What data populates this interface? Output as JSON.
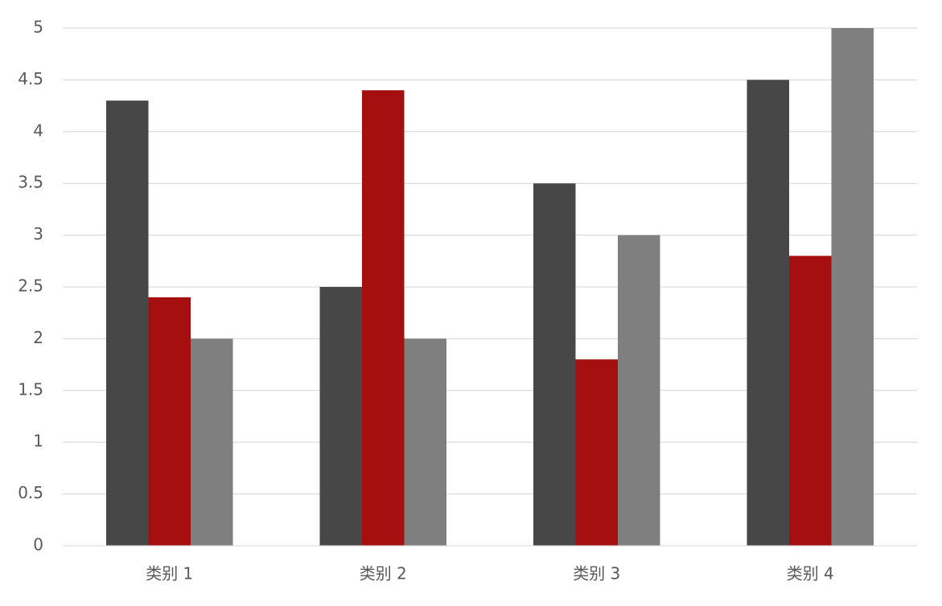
{
  "chart_data": {
    "type": "bar",
    "title": "",
    "xlabel": "",
    "ylabel": "",
    "categories": [
      "类别 1",
      "类别 2",
      "类别 3",
      "类别 4"
    ],
    "series": [
      {
        "values": [
          4.3,
          2.5,
          3.5,
          4.5
        ],
        "color": "#474747"
      },
      {
        "values": [
          2.4,
          4.4,
          1.8,
          2.8
        ],
        "color": "#a50f0f"
      },
      {
        "values": [
          2.0,
          2.0,
          3.0,
          5.0
        ],
        "color": "#7f7f7f"
      }
    ],
    "ylim": [
      0,
      5
    ],
    "yticks": [
      "0",
      "0.5",
      "1",
      "1.5",
      "2",
      "2.5",
      "3",
      "3.5",
      "4",
      "4.5",
      "5"
    ],
    "grid": true,
    "legend": "none"
  }
}
